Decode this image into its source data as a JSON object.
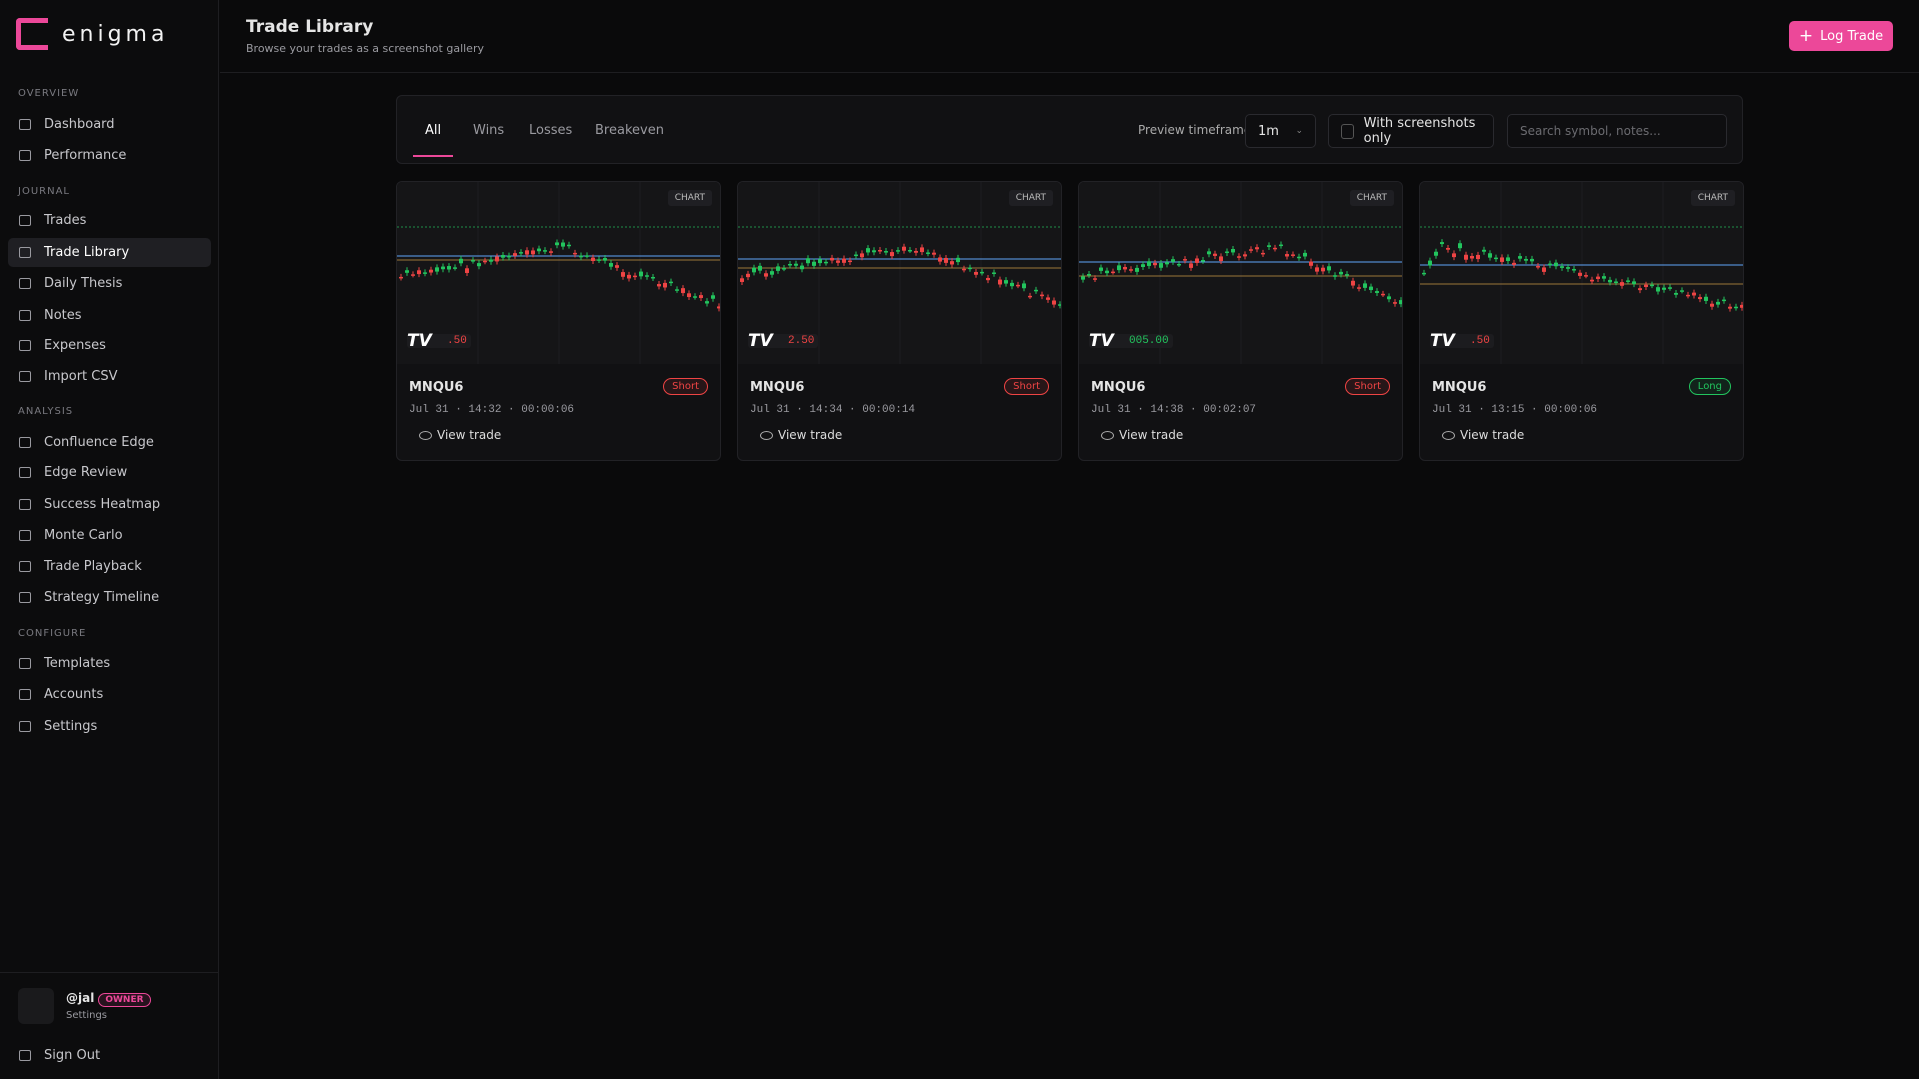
{
  "brand": "enigma",
  "sidebar": {
    "sections": [
      {
        "title": "OVERVIEW",
        "items": [
          "Dashboard",
          "Performance"
        ]
      },
      {
        "title": "JOURNAL",
        "items": [
          "Trades",
          "Trade Library",
          "Daily Thesis",
          "Notes",
          "Expenses",
          "Import CSV"
        ]
      },
      {
        "title": "ANALYSIS",
        "items": [
          "Confluence Edge",
          "Edge Review",
          "Success Heatmap",
          "Monte Carlo",
          "Trade Playback",
          "Strategy Timeline"
        ]
      },
      {
        "title": "CONFIGURE",
        "items": [
          "Templates",
          "Accounts",
          "Settings"
        ]
      }
    ],
    "user": {
      "handle": "@jal",
      "role": "OWNER",
      "link": "Settings"
    },
    "sign_out": "Sign Out"
  },
  "header": {
    "title": "Trade Library",
    "subtitle": "Browse your trades as a screenshot gallery",
    "button": "Log Trade"
  },
  "filters": {
    "tabs": [
      "All",
      "Wins",
      "Losses",
      "Breakeven"
    ],
    "timeframe_label": "Preview timeframe",
    "timeframe": "1m",
    "checkbox": "With screenshots only",
    "search_placeholder": "Search symbol, notes..."
  },
  "cards": [
    {
      "badge": "CHART",
      "price": ".50",
      "symbol": "MNQU6",
      "side": "Short",
      "meta": "Jul 31 · 14:32 · 00:00:06",
      "action": "View trade"
    },
    {
      "badge": "CHART",
      "price": "2.50",
      "symbol": "MNQU6",
      "side": "Short",
      "meta": "Jul 31 · 14:34 · 00:00:14",
      "action": "View trade"
    },
    {
      "badge": "CHART",
      "price": "005.00",
      "symbol": "MNQU6",
      "side": "Short",
      "meta": "Jul 31 · 14:38 · 00:02:07",
      "action": "View trade"
    },
    {
      "badge": "CHART",
      "price": ".50",
      "symbol": "MNQU6",
      "side": "Long",
      "meta": "Jul 31 · 13:15 · 00:00:06",
      "action": "View trade"
    }
  ]
}
